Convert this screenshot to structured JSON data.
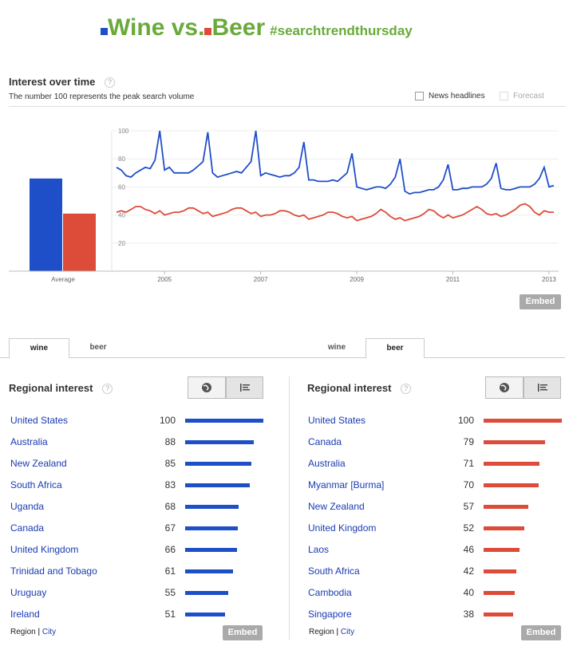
{
  "header": {
    "title_wine": "Wine vs.",
    "title_beer": "Beer",
    "hashtag": "#searchtrendthursday",
    "wine_color": "#1f4fc8",
    "beer_color": "#dd4b39",
    "title_color": "#6aaa3a"
  },
  "interest": {
    "title": "Interest over time",
    "subtitle": "The number 100 represents the peak search volume",
    "help": "?",
    "news_headlines": "News headlines",
    "forecast": "Forecast",
    "average_label": "Average",
    "embed": "Embed"
  },
  "chart_data": {
    "type": "line",
    "ylim": [
      0,
      100
    ],
    "yticks": [
      20,
      40,
      60,
      80,
      100
    ],
    "xlim": [
      2004,
      2013.2
    ],
    "xticks": [
      2005,
      2007,
      2009,
      2011,
      2013
    ],
    "average": {
      "wine": 66,
      "beer": 41
    },
    "series": [
      {
        "name": "wine",
        "color": "#1f4fc8",
        "points": [
          [
            2004.0,
            74
          ],
          [
            2004.1,
            72
          ],
          [
            2004.2,
            68
          ],
          [
            2004.3,
            67
          ],
          [
            2004.4,
            70
          ],
          [
            2004.5,
            72
          ],
          [
            2004.6,
            74
          ],
          [
            2004.7,
            73
          ],
          [
            2004.8,
            79
          ],
          [
            2004.9,
            100
          ],
          [
            2005.0,
            72
          ],
          [
            2005.1,
            74
          ],
          [
            2005.2,
            70
          ],
          [
            2005.3,
            70
          ],
          [
            2005.4,
            70
          ],
          [
            2005.5,
            70
          ],
          [
            2005.6,
            72
          ],
          [
            2005.7,
            75
          ],
          [
            2005.8,
            78
          ],
          [
            2005.9,
            99
          ],
          [
            2006.0,
            70
          ],
          [
            2006.1,
            67
          ],
          [
            2006.2,
            68
          ],
          [
            2006.3,
            69
          ],
          [
            2006.4,
            70
          ],
          [
            2006.5,
            71
          ],
          [
            2006.6,
            70
          ],
          [
            2006.7,
            74
          ],
          [
            2006.8,
            78
          ],
          [
            2006.9,
            100
          ],
          [
            2007.0,
            68
          ],
          [
            2007.1,
            70
          ],
          [
            2007.2,
            69
          ],
          [
            2007.3,
            68
          ],
          [
            2007.4,
            67
          ],
          [
            2007.5,
            68
          ],
          [
            2007.6,
            68
          ],
          [
            2007.7,
            70
          ],
          [
            2007.8,
            74
          ],
          [
            2007.9,
            92
          ],
          [
            2008.0,
            65
          ],
          [
            2008.1,
            65
          ],
          [
            2008.2,
            64
          ],
          [
            2008.3,
            64
          ],
          [
            2008.4,
            64
          ],
          [
            2008.5,
            65
          ],
          [
            2008.6,
            64
          ],
          [
            2008.7,
            67
          ],
          [
            2008.8,
            70
          ],
          [
            2008.9,
            84
          ],
          [
            2009.0,
            60
          ],
          [
            2009.1,
            59
          ],
          [
            2009.2,
            58
          ],
          [
            2009.3,
            59
          ],
          [
            2009.4,
            60
          ],
          [
            2009.5,
            60
          ],
          [
            2009.6,
            59
          ],
          [
            2009.7,
            62
          ],
          [
            2009.8,
            67
          ],
          [
            2009.9,
            80
          ],
          [
            2010.0,
            57
          ],
          [
            2010.1,
            55
          ],
          [
            2010.2,
            56
          ],
          [
            2010.3,
            56
          ],
          [
            2010.4,
            57
          ],
          [
            2010.5,
            58
          ],
          [
            2010.6,
            58
          ],
          [
            2010.7,
            60
          ],
          [
            2010.8,
            65
          ],
          [
            2010.9,
            76
          ],
          [
            2011.0,
            58
          ],
          [
            2011.1,
            58
          ],
          [
            2011.2,
            59
          ],
          [
            2011.3,
            59
          ],
          [
            2011.4,
            60
          ],
          [
            2011.5,
            60
          ],
          [
            2011.6,
            60
          ],
          [
            2011.7,
            62
          ],
          [
            2011.8,
            66
          ],
          [
            2011.9,
            77
          ],
          [
            2012.0,
            59
          ],
          [
            2012.1,
            58
          ],
          [
            2012.2,
            58
          ],
          [
            2012.3,
            59
          ],
          [
            2012.4,
            60
          ],
          [
            2012.5,
            60
          ],
          [
            2012.6,
            60
          ],
          [
            2012.7,
            62
          ],
          [
            2012.8,
            66
          ],
          [
            2012.9,
            74
          ],
          [
            2013.0,
            60
          ],
          [
            2013.1,
            61
          ]
        ]
      },
      {
        "name": "beer",
        "color": "#dd4b39",
        "points": [
          [
            2004.0,
            42
          ],
          [
            2004.1,
            43
          ],
          [
            2004.2,
            42
          ],
          [
            2004.3,
            44
          ],
          [
            2004.4,
            46
          ],
          [
            2004.5,
            46
          ],
          [
            2004.6,
            44
          ],
          [
            2004.7,
            43
          ],
          [
            2004.8,
            41
          ],
          [
            2004.9,
            43
          ],
          [
            2005.0,
            40
          ],
          [
            2005.1,
            41
          ],
          [
            2005.2,
            42
          ],
          [
            2005.3,
            42
          ],
          [
            2005.4,
            43
          ],
          [
            2005.5,
            45
          ],
          [
            2005.6,
            45
          ],
          [
            2005.7,
            43
          ],
          [
            2005.8,
            41
          ],
          [
            2005.9,
            42
          ],
          [
            2006.0,
            39
          ],
          [
            2006.1,
            40
          ],
          [
            2006.2,
            41
          ],
          [
            2006.3,
            42
          ],
          [
            2006.4,
            44
          ],
          [
            2006.5,
            45
          ],
          [
            2006.6,
            45
          ],
          [
            2006.7,
            43
          ],
          [
            2006.8,
            41
          ],
          [
            2006.9,
            42
          ],
          [
            2007.0,
            39
          ],
          [
            2007.1,
            40
          ],
          [
            2007.2,
            40
          ],
          [
            2007.3,
            41
          ],
          [
            2007.4,
            43
          ],
          [
            2007.5,
            43
          ],
          [
            2007.6,
            42
          ],
          [
            2007.7,
            40
          ],
          [
            2007.8,
            39
          ],
          [
            2007.9,
            40
          ],
          [
            2008.0,
            37
          ],
          [
            2008.1,
            38
          ],
          [
            2008.2,
            39
          ],
          [
            2008.3,
            40
          ],
          [
            2008.4,
            42
          ],
          [
            2008.5,
            42
          ],
          [
            2008.6,
            41
          ],
          [
            2008.7,
            39
          ],
          [
            2008.8,
            38
          ],
          [
            2008.9,
            39
          ],
          [
            2009.0,
            36
          ],
          [
            2009.1,
            37
          ],
          [
            2009.2,
            38
          ],
          [
            2009.3,
            39
          ],
          [
            2009.4,
            41
          ],
          [
            2009.5,
            44
          ],
          [
            2009.6,
            42
          ],
          [
            2009.7,
            39
          ],
          [
            2009.8,
            37
          ],
          [
            2009.9,
            38
          ],
          [
            2010.0,
            36
          ],
          [
            2010.1,
            37
          ],
          [
            2010.2,
            38
          ],
          [
            2010.3,
            39
          ],
          [
            2010.4,
            41
          ],
          [
            2010.5,
            44
          ],
          [
            2010.6,
            43
          ],
          [
            2010.7,
            40
          ],
          [
            2010.8,
            38
          ],
          [
            2010.9,
            40
          ],
          [
            2011.0,
            38
          ],
          [
            2011.1,
            39
          ],
          [
            2011.2,
            40
          ],
          [
            2011.3,
            42
          ],
          [
            2011.4,
            44
          ],
          [
            2011.5,
            46
          ],
          [
            2011.6,
            44
          ],
          [
            2011.7,
            41
          ],
          [
            2011.8,
            40
          ],
          [
            2011.9,
            41
          ],
          [
            2012.0,
            39
          ],
          [
            2012.1,
            40
          ],
          [
            2012.2,
            42
          ],
          [
            2012.3,
            44
          ],
          [
            2012.4,
            47
          ],
          [
            2012.5,
            48
          ],
          [
            2012.6,
            46
          ],
          [
            2012.7,
            42
          ],
          [
            2012.8,
            40
          ],
          [
            2012.9,
            43
          ],
          [
            2013.0,
            42
          ],
          [
            2013.1,
            42
          ]
        ]
      }
    ]
  },
  "tabs": {
    "wine": "wine",
    "beer": "beer"
  },
  "regional": {
    "title": "Regional interest",
    "region": "Region",
    "city": "City",
    "embed": "Embed",
    "wine": [
      {
        "name": "United States",
        "value": 100
      },
      {
        "name": "Australia",
        "value": 88
      },
      {
        "name": "New Zealand",
        "value": 85
      },
      {
        "name": "South Africa",
        "value": 83
      },
      {
        "name": "Uganda",
        "value": 68
      },
      {
        "name": "Canada",
        "value": 67
      },
      {
        "name": "United Kingdom",
        "value": 66
      },
      {
        "name": "Trinidad and Tobago",
        "value": 61
      },
      {
        "name": "Uruguay",
        "value": 55
      },
      {
        "name": "Ireland",
        "value": 51
      }
    ],
    "beer": [
      {
        "name": "United States",
        "value": 100
      },
      {
        "name": "Canada",
        "value": 79
      },
      {
        "name": "Australia",
        "value": 71
      },
      {
        "name": "Myanmar [Burma]",
        "value": 70
      },
      {
        "name": "New Zealand",
        "value": 57
      },
      {
        "name": "United Kingdom",
        "value": 52
      },
      {
        "name": "Laos",
        "value": 46
      },
      {
        "name": "South Africa",
        "value": 42
      },
      {
        "name": "Cambodia",
        "value": 40
      },
      {
        "name": "Singapore",
        "value": 38
      }
    ]
  }
}
